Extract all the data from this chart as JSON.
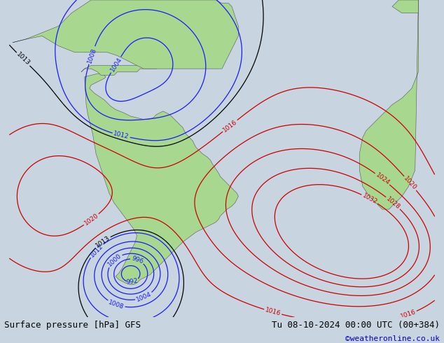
{
  "title_left": "Surface pressure [hPa] GFS",
  "title_right": "Tu 08-10-2024 00:00 UTC (00+384)",
  "copyright": "©weatheronline.co.uk",
  "bg_color": "#c8d4e0",
  "land_color": "#a8d890",
  "fig_width": 6.34,
  "fig_height": 4.9,
  "dpi": 100,
  "bottom_bar_color": "#ffffff",
  "title_fontsize": 9,
  "copyright_color": "#0000cc",
  "copyright_fontsize": 8,
  "map_xlim": [
    -105,
    25
  ],
  "map_ylim": [
    -65,
    32
  ]
}
